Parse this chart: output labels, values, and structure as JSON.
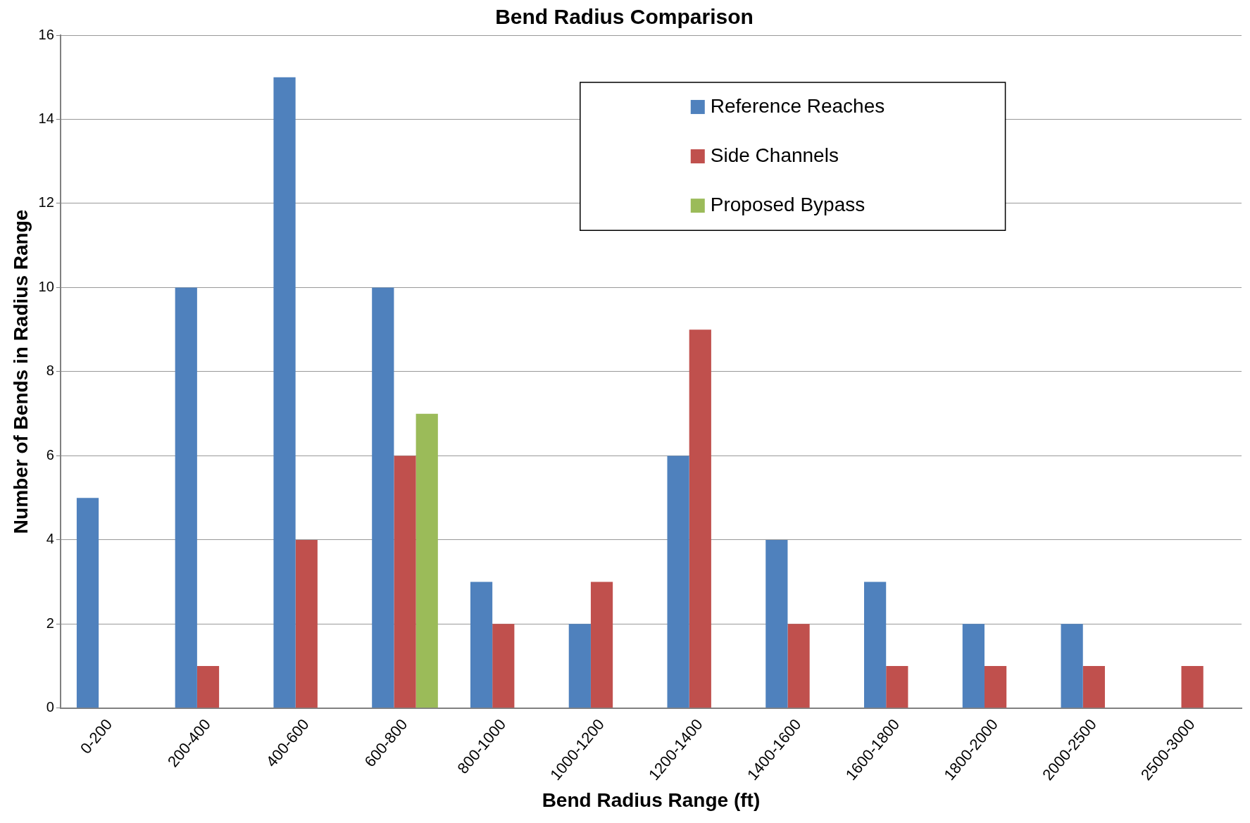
{
  "chart_data": {
    "type": "bar",
    "title": "Bend Radius Comparison",
    "xlabel": "Bend Radius Range (ft)",
    "ylabel": "Number of Bends in Radius Range",
    "categories": [
      "0-200",
      "200-400",
      "400-600",
      "600-800",
      "800-1000",
      "1000-1200",
      "1200-1400",
      "1400-1600",
      "1600-1800",
      "1800-2000",
      "2000-2500",
      "2500-3000"
    ],
    "series": [
      {
        "name": "Reference Reaches",
        "color": "#4f81bd",
        "values": [
          5,
          10,
          15,
          10,
          3,
          2,
          6,
          4,
          3,
          2,
          2,
          0
        ]
      },
      {
        "name": "Side Channels",
        "color": "#c0504d",
        "values": [
          0,
          1,
          4,
          6,
          2,
          3,
          9,
          2,
          1,
          1,
          1,
          1
        ]
      },
      {
        "name": "Proposed Bypass",
        "color": "#9bbb59",
        "values": [
          0,
          0,
          0,
          7,
          0,
          0,
          0,
          0,
          0,
          0,
          0,
          0
        ]
      }
    ],
    "ylim": [
      0,
      16
    ],
    "yticks": [
      0,
      2,
      4,
      6,
      8,
      10,
      12,
      14,
      16
    ],
    "grid": "y",
    "legend": "top right"
  }
}
